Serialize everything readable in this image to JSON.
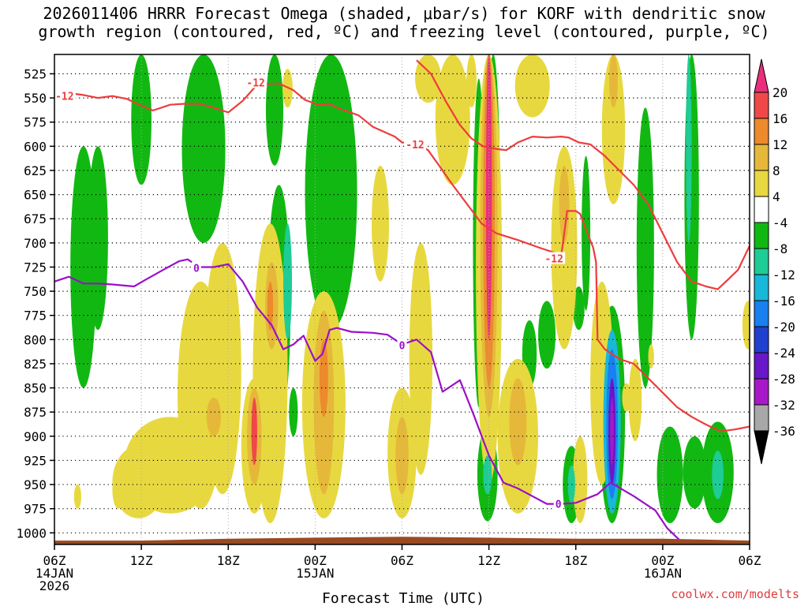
{
  "chart_data": {
    "type": "heatmap",
    "title_line1": "2026011406 HRRR Forecast Omega (shaded, μbar/s) for KORF with dendritic snow",
    "title_line2": "growth region (contoured, red, ºC) and freezing level (contoured, purple, ºC)",
    "xlabel": "Forecast Time (UTC)",
    "credit": "coolwx.com/modelts",
    "x_ticks": [
      {
        "h": 0,
        "l1": "06Z",
        "l2": "14JAN",
        "l3": "2026"
      },
      {
        "h": 6,
        "l1": "12Z",
        "l2": "",
        "l3": ""
      },
      {
        "h": 12,
        "l1": "18Z",
        "l2": "",
        "l3": ""
      },
      {
        "h": 18,
        "l1": "00Z",
        "l2": "15JAN",
        "l3": ""
      },
      {
        "h": 24,
        "l1": "06Z",
        "l2": "",
        "l3": ""
      },
      {
        "h": 30,
        "l1": "12Z",
        "l2": "",
        "l3": ""
      },
      {
        "h": 36,
        "l1": "18Z",
        "l2": "",
        "l3": ""
      },
      {
        "h": 42,
        "l1": "00Z",
        "l2": "16JAN",
        "l3": ""
      },
      {
        "h": 48,
        "l1": "06Z",
        "l2": "",
        "l3": ""
      }
    ],
    "xlim_hours": [
      0,
      48
    ],
    "y_ticks_hpa": [
      "525",
      "550",
      "575",
      "600",
      "625",
      "650",
      "675",
      "700",
      "725",
      "750",
      "775",
      "800",
      "825",
      "850",
      "875",
      "900",
      "925",
      "950",
      "975",
      "1000"
    ],
    "ylim_hpa": [
      505,
      1012
    ],
    "colorbar": {
      "labels": [
        "20",
        "16",
        "12",
        "8",
        "4",
        "-4",
        "-8",
        "-12",
        "-16",
        "-20",
        "-24",
        "-28",
        "-32",
        "-36"
      ],
      "colors": [
        "#e8307c",
        "#f04848",
        "#ec8a2c",
        "#e6b83a",
        "#e8d840",
        "#ffffff",
        "#12b812",
        "#1ecc96",
        "#18b8d8",
        "#1880f0",
        "#2040d0",
        "#6818c8",
        "#a818c8",
        "#a8a8a8",
        "#000000"
      ]
    },
    "omega_cells": [
      {
        "h": 2.0,
        "hw": 0.9,
        "p1": 600,
        "p2": 850,
        "v": -6
      },
      {
        "h": 3.0,
        "hw": 0.7,
        "p1": 600,
        "p2": 790,
        "v": -6
      },
      {
        "h": 6.0,
        "hw": 0.7,
        "p1": 505,
        "p2": 640,
        "v": -6
      },
      {
        "h": 10.3,
        "hw": 1.5,
        "p1": 505,
        "p2": 700,
        "v": -6
      },
      {
        "h": 15.2,
        "hw": 0.6,
        "p1": 505,
        "p2": 620,
        "v": -6
      },
      {
        "h": 19.1,
        "hw": 1.8,
        "p1": 505,
        "p2": 790,
        "v": -6
      },
      {
        "h": 30.3,
        "hw": 0.5,
        "p1": 505,
        "p2": 880,
        "v": -6
      },
      {
        "h": 29.3,
        "hw": 0.4,
        "p1": 530,
        "p2": 870,
        "v": -6
      },
      {
        "h": 36.7,
        "hw": 0.3,
        "p1": 610,
        "p2": 770,
        "v": -6
      },
      {
        "h": 40.8,
        "hw": 0.6,
        "p1": 560,
        "p2": 850,
        "v": -6
      },
      {
        "h": 44.0,
        "hw": 0.5,
        "p1": 505,
        "p2": 800,
        "v": -6
      },
      {
        "h": 43.8,
        "hw": 0.2,
        "p1": 505,
        "p2": 700,
        "v": -10
      },
      {
        "h": 15.5,
        "hw": 0.8,
        "p1": 640,
        "p2": 890,
        "v": -6
      },
      {
        "h": 16.1,
        "hw": 0.3,
        "p1": 680,
        "p2": 800,
        "v": -10
      },
      {
        "h": 16.5,
        "hw": 0.3,
        "p1": 850,
        "p2": 900,
        "v": -6
      },
      {
        "h": 34.0,
        "hw": 0.6,
        "p1": 760,
        "p2": 830,
        "v": -6
      },
      {
        "h": 32.8,
        "hw": 0.5,
        "p1": 780,
        "p2": 850,
        "v": -6
      },
      {
        "h": 36.2,
        "hw": 0.4,
        "p1": 745,
        "p2": 790,
        "v": -6
      },
      {
        "h": 29.9,
        "hw": 0.7,
        "p1": 890,
        "p2": 988,
        "v": -6
      },
      {
        "h": 29.9,
        "hw": 0.3,
        "p1": 920,
        "p2": 960,
        "v": -10
      },
      {
        "h": 35.7,
        "hw": 0.6,
        "p1": 910,
        "p2": 990,
        "v": -6
      },
      {
        "h": 35.7,
        "hw": 0.25,
        "p1": 930,
        "p2": 970,
        "v": -10
      },
      {
        "h": 38.5,
        "hw": 0.9,
        "p1": 765,
        "p2": 990,
        "v": -6
      },
      {
        "h": 38.5,
        "hw": 0.6,
        "p1": 790,
        "p2": 980,
        "v": -12
      },
      {
        "h": 38.5,
        "hw": 0.4,
        "p1": 810,
        "p2": 965,
        "v": -18
      },
      {
        "h": 38.5,
        "hw": 0.25,
        "p1": 840,
        "p2": 950,
        "v": -24
      },
      {
        "h": 38.5,
        "hw": 0.12,
        "p1": 860,
        "p2": 930,
        "v": -30
      },
      {
        "h": 42.5,
        "hw": 0.9,
        "p1": 890,
        "p2": 990,
        "v": -6
      },
      {
        "h": 45.8,
        "hw": 1.1,
        "p1": 885,
        "p2": 990,
        "v": -6
      },
      {
        "h": 44.2,
        "hw": 0.8,
        "p1": 900,
        "p2": 975,
        "v": -6
      },
      {
        "h": 45.8,
        "hw": 0.4,
        "p1": 915,
        "p2": 965,
        "v": -10
      },
      {
        "h": 8.0,
        "hw": 3.2,
        "p1": 880,
        "p2": 980,
        "v": 6
      },
      {
        "h": 10.1,
        "hw": 1.6,
        "p1": 740,
        "p2": 975,
        "v": 6
      },
      {
        "h": 11.6,
        "hw": 1.3,
        "p1": 700,
        "p2": 960,
        "v": 6
      },
      {
        "h": 5.8,
        "hw": 1.8,
        "p1": 910,
        "p2": 985,
        "v": 6
      },
      {
        "h": 1.6,
        "hw": 0.25,
        "p1": 950,
        "p2": 975,
        "v": 6
      },
      {
        "h": 4.4,
        "hw": 0.4,
        "p1": 935,
        "p2": 975,
        "v": 6
      },
      {
        "h": 11.0,
        "hw": 0.5,
        "p1": 860,
        "p2": 900,
        "v": 10
      },
      {
        "h": 14.9,
        "hw": 1.2,
        "p1": 680,
        "p2": 990,
        "v": 6
      },
      {
        "h": 15.0,
        "hw": 0.45,
        "p1": 720,
        "p2": 810,
        "v": 10
      },
      {
        "h": 14.9,
        "hw": 0.2,
        "p1": 740,
        "p2": 790,
        "v": 14
      },
      {
        "h": 13.8,
        "hw": 0.9,
        "p1": 840,
        "p2": 980,
        "v": 6
      },
      {
        "h": 13.8,
        "hw": 0.5,
        "p1": 850,
        "p2": 950,
        "v": 10
      },
      {
        "h": 13.8,
        "hw": 0.2,
        "p1": 860,
        "p2": 930,
        "v": 18
      },
      {
        "h": 18.6,
        "hw": 1.5,
        "p1": 750,
        "p2": 985,
        "v": 6
      },
      {
        "h": 18.6,
        "hw": 0.7,
        "p1": 770,
        "p2": 960,
        "v": 10
      },
      {
        "h": 18.6,
        "hw": 0.3,
        "p1": 800,
        "p2": 880,
        "v": 14
      },
      {
        "h": 16.1,
        "hw": 0.35,
        "p1": 520,
        "p2": 560,
        "v": 6
      },
      {
        "h": 22.5,
        "hw": 0.6,
        "p1": 620,
        "p2": 740,
        "v": 6
      },
      {
        "h": 24.0,
        "hw": 1.0,
        "p1": 850,
        "p2": 985,
        "v": 6
      },
      {
        "h": 24.0,
        "hw": 0.45,
        "p1": 880,
        "p2": 960,
        "v": 10
      },
      {
        "h": 25.3,
        "hw": 0.8,
        "p1": 700,
        "p2": 940,
        "v": 6
      },
      {
        "h": 27.5,
        "hw": 1.2,
        "p1": 505,
        "p2": 640,
        "v": 6
      },
      {
        "h": 25.8,
        "hw": 0.9,
        "p1": 505,
        "p2": 555,
        "v": 6
      },
      {
        "h": 30.0,
        "hw": 0.9,
        "p1": 505,
        "p2": 950,
        "v": 6
      },
      {
        "h": 30.0,
        "hw": 0.6,
        "p1": 505,
        "p2": 880,
        "v": 10
      },
      {
        "h": 30.0,
        "hw": 0.4,
        "p1": 505,
        "p2": 850,
        "v": 15
      },
      {
        "h": 30.0,
        "hw": 0.2,
        "p1": 505,
        "p2": 800,
        "v": 22
      },
      {
        "h": 28.8,
        "hw": 0.35,
        "p1": 505,
        "p2": 560,
        "v": 6
      },
      {
        "h": 33.0,
        "hw": 1.2,
        "p1": 505,
        "p2": 570,
        "v": 6
      },
      {
        "h": 32.0,
        "hw": 1.4,
        "p1": 820,
        "p2": 980,
        "v": 6
      },
      {
        "h": 32.0,
        "hw": 0.6,
        "p1": 840,
        "p2": 930,
        "v": 10
      },
      {
        "h": 35.2,
        "hw": 0.9,
        "p1": 600,
        "p2": 810,
        "v": 6
      },
      {
        "h": 35.2,
        "hw": 0.35,
        "p1": 620,
        "p2": 700,
        "v": 10
      },
      {
        "h": 38.6,
        "hw": 0.8,
        "p1": 505,
        "p2": 660,
        "v": 6
      },
      {
        "h": 38.6,
        "hw": 0.3,
        "p1": 505,
        "p2": 560,
        "v": 10
      },
      {
        "h": 37.8,
        "hw": 0.8,
        "p1": 740,
        "p2": 950,
        "v": 6
      },
      {
        "h": 36.3,
        "hw": 0.5,
        "p1": 900,
        "p2": 990,
        "v": 6
      },
      {
        "h": 39.5,
        "hw": 0.3,
        "p1": 845,
        "p2": 875,
        "v": 6
      },
      {
        "h": 40.1,
        "hw": 0.45,
        "p1": 820,
        "p2": 905,
        "v": 6
      },
      {
        "h": 41.2,
        "hw": 0.2,
        "p1": 805,
        "p2": 830,
        "v": 6
      },
      {
        "h": 47.9,
        "hw": 0.4,
        "p1": 760,
        "p2": 810,
        "v": 6
      }
    ],
    "ground_height_hpa_above_bottom": [
      {
        "h": 0,
        "dp": 4
      },
      {
        "h": 6,
        "dp": 4
      },
      {
        "h": 12,
        "dp": 6
      },
      {
        "h": 18,
        "dp": 7
      },
      {
        "h": 24,
        "dp": 8
      },
      {
        "h": 30,
        "dp": 7
      },
      {
        "h": 36,
        "dp": 6
      },
      {
        "h": 42,
        "dp": 6
      },
      {
        "h": 48,
        "dp": 4
      }
    ],
    "dgz_minus12_top": [
      {
        "h": 0.0,
        "p": 546
      },
      {
        "h": 1.0,
        "p": 545
      },
      {
        "h": 2.0,
        "p": 547
      },
      {
        "h": 3.0,
        "p": 550
      },
      {
        "h": 4.0,
        "p": 548
      },
      {
        "h": 5.0,
        "p": 551
      },
      {
        "h": 6.0,
        "p": 558
      },
      {
        "h": 6.8,
        "p": 563
      },
      {
        "h": 8.0,
        "p": 557
      },
      {
        "h": 9.0,
        "p": 556
      },
      {
        "h": 10.0,
        "p": 556
      },
      {
        "h": 11.0,
        "p": 560
      },
      {
        "h": 12.0,
        "p": 565
      },
      {
        "h": 13.0,
        "p": 553
      },
      {
        "h": 14.0,
        "p": 536
      },
      {
        "h": 15.5,
        "p": 535
      },
      {
        "h": 16.5,
        "p": 542
      },
      {
        "h": 17.3,
        "p": 552
      },
      {
        "h": 18.2,
        "p": 557
      },
      {
        "h": 19.0,
        "p": 556
      },
      {
        "h": 19.5,
        "p": 560
      },
      {
        "h": 21.0,
        "p": 568
      },
      {
        "h": 22.0,
        "p": 580
      },
      {
        "h": 23.5,
        "p": 590
      },
      {
        "h": 24.0,
        "p": 596
      },
      {
        "h": 25.0,
        "p": 597
      },
      {
        "h": 25.8,
        "p": 604
      },
      {
        "h": 26.7,
        "p": 623
      },
      {
        "h": 27.5,
        "p": 640
      },
      {
        "h": 28.5,
        "p": 660
      },
      {
        "h": 29.5,
        "p": 680
      },
      {
        "h": 30.5,
        "p": 690
      },
      {
        "h": 32.0,
        "p": 697
      },
      {
        "h": 33.5,
        "p": 705
      },
      {
        "h": 34.5,
        "p": 710
      },
      {
        "h": 35.0,
        "p": 712
      }
    ],
    "dgz_minus12_mid": [
      {
        "h": 25.0,
        "p": 511
      },
      {
        "h": 26.0,
        "p": 525
      },
      {
        "h": 27.0,
        "p": 553
      },
      {
        "h": 28.0,
        "p": 578
      },
      {
        "h": 28.8,
        "p": 592
      },
      {
        "h": 29.6,
        "p": 600
      },
      {
        "h": 30.6,
        "p": 603
      },
      {
        "h": 31.2,
        "p": 604
      },
      {
        "h": 32.0,
        "p": 596
      },
      {
        "h": 33.0,
        "p": 590
      },
      {
        "h": 34.0,
        "p": 591
      },
      {
        "h": 35.0,
        "p": 590
      },
      {
        "h": 35.5,
        "p": 591
      },
      {
        "h": 36.2,
        "p": 596
      },
      {
        "h": 37.0,
        "p": 598
      },
      {
        "h": 38.0,
        "p": 610
      },
      {
        "h": 39.0,
        "p": 625
      },
      {
        "h": 40.0,
        "p": 640
      },
      {
        "h": 41.0,
        "p": 660
      },
      {
        "h": 42.0,
        "p": 690
      },
      {
        "h": 43.0,
        "p": 720
      },
      {
        "h": 44.0,
        "p": 740
      },
      {
        "h": 45.0,
        "p": 745
      },
      {
        "h": 45.8,
        "p": 748
      },
      {
        "h": 46.5,
        "p": 738
      },
      {
        "h": 47.2,
        "p": 728
      },
      {
        "h": 48.0,
        "p": 703
      }
    ],
    "dgz_minus12_lower": [
      {
        "h": 35.0,
        "p": 712
      },
      {
        "h": 35.2,
        "p": 690
      },
      {
        "h": 35.4,
        "p": 667
      },
      {
        "h": 36.0,
        "p": 667
      },
      {
        "h": 36.3,
        "p": 670
      },
      {
        "h": 36.8,
        "p": 690
      },
      {
        "h": 37.2,
        "p": 705
      },
      {
        "h": 37.4,
        "p": 720
      },
      {
        "h": 37.5,
        "p": 800
      },
      {
        "h": 38.0,
        "p": 810
      },
      {
        "h": 38.5,
        "p": 815
      },
      {
        "h": 39.0,
        "p": 820
      },
      {
        "h": 40.0,
        "p": 825
      },
      {
        "h": 41.0,
        "p": 840
      },
      {
        "h": 42.0,
        "p": 855
      },
      {
        "h": 43.0,
        "p": 870
      },
      {
        "h": 44.0,
        "p": 880
      },
      {
        "h": 45.0,
        "p": 888
      },
      {
        "h": 46.0,
        "p": 895
      },
      {
        "h": 47.0,
        "p": 893
      },
      {
        "h": 48.0,
        "p": 890
      }
    ],
    "dgz_labels": [
      {
        "h": 0.7,
        "p": 548,
        "text": "-12"
      },
      {
        "h": 13.9,
        "p": 534,
        "text": "-12"
      },
      {
        "h": 24.9,
        "p": 598,
        "text": "-12"
      },
      {
        "h": 34.5,
        "p": 716,
        "text": "-12"
      }
    ],
    "freezing_level_0C": [
      {
        "h": 0.0,
        "p": 740
      },
      {
        "h": 1.0,
        "p": 735
      },
      {
        "h": 2.0,
        "p": 742
      },
      {
        "h": 3.0,
        "p": 742
      },
      {
        "h": 4.0,
        "p": 743
      },
      {
        "h": 5.5,
        "p": 745
      },
      {
        "h": 6.3,
        "p": 738
      },
      {
        "h": 7.5,
        "p": 728
      },
      {
        "h": 8.6,
        "p": 719
      },
      {
        "h": 9.2,
        "p": 717
      },
      {
        "h": 10.0,
        "p": 725
      },
      {
        "h": 11.0,
        "p": 725
      },
      {
        "h": 12.0,
        "p": 722
      },
      {
        "h": 13.0,
        "p": 740
      },
      {
        "h": 14.0,
        "p": 767
      },
      {
        "h": 15.0,
        "p": 785
      },
      {
        "h": 15.8,
        "p": 810
      },
      {
        "h": 16.5,
        "p": 805
      },
      {
        "h": 17.2,
        "p": 796
      },
      {
        "h": 18.0,
        "p": 822
      },
      {
        "h": 18.5,
        "p": 815
      },
      {
        "h": 19.0,
        "p": 790
      },
      {
        "h": 19.5,
        "p": 788
      },
      {
        "h": 20.5,
        "p": 792
      },
      {
        "h": 22.0,
        "p": 793
      },
      {
        "h": 23.0,
        "p": 795
      },
      {
        "h": 24.0,
        "p": 805
      },
      {
        "h": 25.0,
        "p": 800
      },
      {
        "h": 26.0,
        "p": 813
      },
      {
        "h": 26.8,
        "p": 854
      },
      {
        "h": 28.0,
        "p": 842
      },
      {
        "h": 29.0,
        "p": 880
      },
      {
        "h": 30.0,
        "p": 920
      },
      {
        "h": 31.0,
        "p": 948
      },
      {
        "h": 32.0,
        "p": 954
      },
      {
        "h": 33.0,
        "p": 962
      },
      {
        "h": 34.0,
        "p": 970
      },
      {
        "h": 35.0,
        "p": 970
      },
      {
        "h": 36.0,
        "p": 969
      },
      {
        "h": 37.5,
        "p": 960
      },
      {
        "h": 38.4,
        "p": 948
      },
      {
        "h": 40.0,
        "p": 962
      },
      {
        "h": 41.5,
        "p": 977
      },
      {
        "h": 42.3,
        "p": 995
      },
      {
        "h": 43.2,
        "p": 1008
      }
    ],
    "frz_labels": [
      {
        "h": 9.8,
        "p": 726,
        "text": "0"
      },
      {
        "h": 24.0,
        "p": 806,
        "text": "0"
      },
      {
        "h": 34.8,
        "p": 970,
        "text": "0"
      }
    ]
  }
}
